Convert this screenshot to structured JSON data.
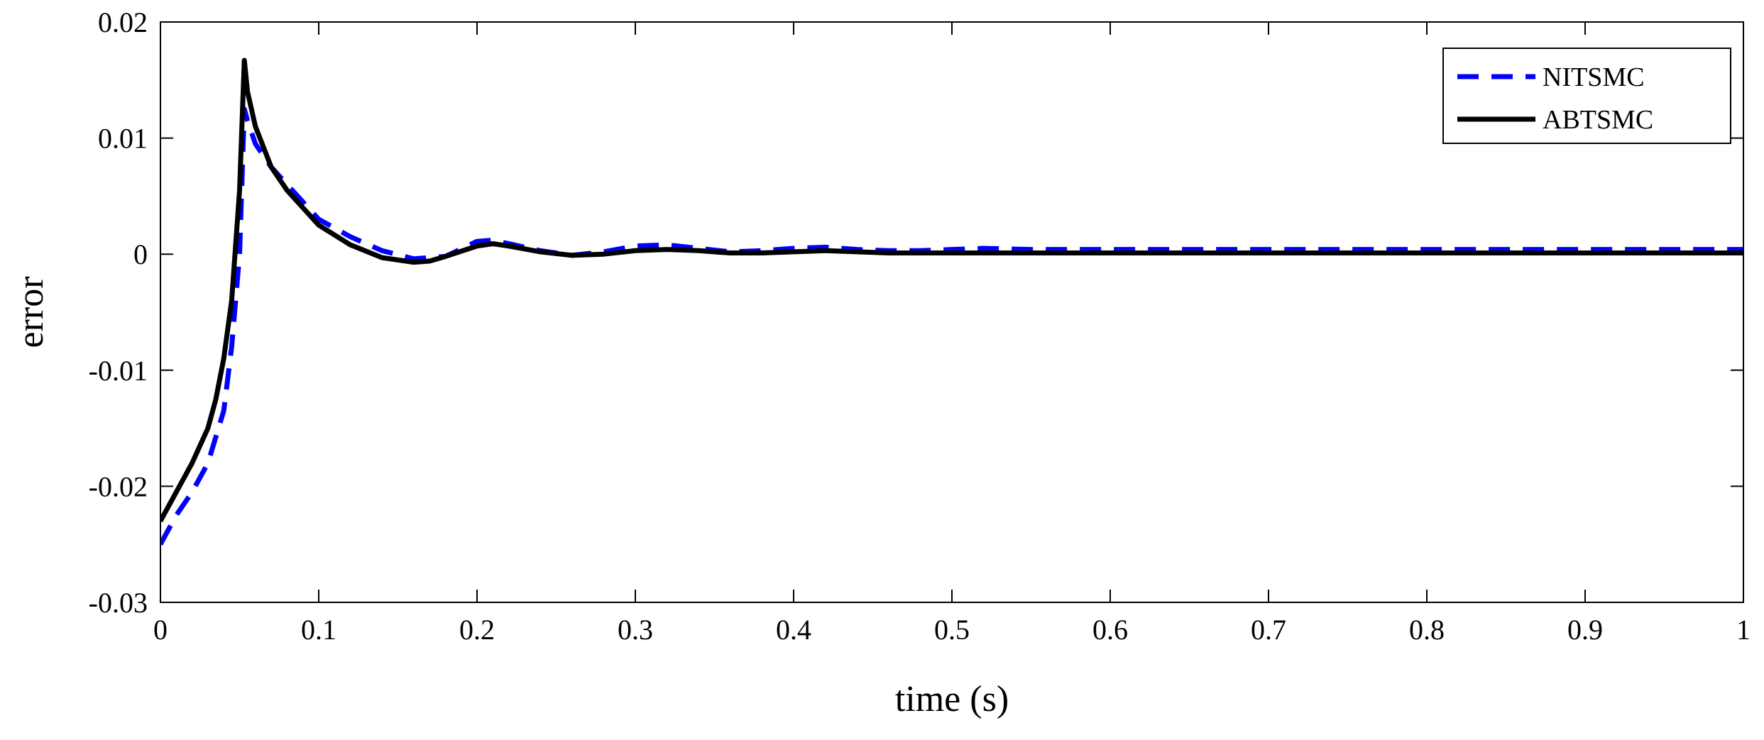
{
  "chart_data": {
    "type": "line",
    "title": "",
    "xlabel": "time (s)",
    "ylabel": "error",
    "xlim": [
      0,
      1
    ],
    "ylim": [
      -0.03,
      0.02
    ],
    "grid": false,
    "legend_position": "top-right",
    "x_ticks": [
      0,
      0.1,
      0.2,
      0.3,
      0.4,
      0.5,
      0.6,
      0.7,
      0.8,
      0.9,
      1
    ],
    "x_tick_labels": [
      "0",
      "0.1",
      "0.2",
      "0.3",
      "0.4",
      "0.5",
      "0.6",
      "0.7",
      "0.8",
      "0.9",
      "1"
    ],
    "y_ticks": [
      -0.03,
      -0.02,
      -0.01,
      0,
      0.01,
      0.02
    ],
    "y_tick_labels": [
      "-0.03",
      "-0.02",
      "-0.01",
      "0",
      "0.01",
      "0.02"
    ],
    "series": [
      {
        "name": "NITSMC",
        "color": "#0000ff",
        "style": "dashed",
        "x": [
          0,
          0.01,
          0.02,
          0.03,
          0.04,
          0.045,
          0.05,
          0.053,
          0.055,
          0.06,
          0.07,
          0.08,
          0.1,
          0.12,
          0.14,
          0.16,
          0.18,
          0.2,
          0.21,
          0.22,
          0.24,
          0.26,
          0.28,
          0.3,
          0.32,
          0.34,
          0.36,
          0.38,
          0.4,
          0.42,
          0.44,
          0.46,
          0.48,
          0.5,
          0.52,
          0.55,
          0.6,
          0.7,
          0.8,
          0.9,
          1.0
        ],
        "y": [
          -0.025,
          -0.0225,
          -0.0205,
          -0.018,
          -0.0135,
          -0.008,
          0.0,
          0.0125,
          0.0115,
          0.0095,
          0.0075,
          0.006,
          0.003,
          0.0015,
          0.0003,
          -0.0004,
          -0.0002,
          0.0011,
          0.0012,
          0.0009,
          0.0003,
          -0.0001,
          0.0002,
          0.0007,
          0.0008,
          0.0005,
          0.0002,
          0.0003,
          0.0005,
          0.0006,
          0.0004,
          0.0003,
          0.0003,
          0.0004,
          0.0005,
          0.0004,
          0.0004,
          0.0004,
          0.0004,
          0.0004,
          0.0004
        ]
      },
      {
        "name": "ABTSMC",
        "color": "#000000",
        "style": "solid",
        "x": [
          0,
          0.01,
          0.02,
          0.03,
          0.035,
          0.04,
          0.045,
          0.05,
          0.053,
          0.055,
          0.06,
          0.07,
          0.08,
          0.1,
          0.12,
          0.14,
          0.16,
          0.17,
          0.18,
          0.2,
          0.21,
          0.22,
          0.24,
          0.26,
          0.28,
          0.3,
          0.32,
          0.34,
          0.36,
          0.38,
          0.4,
          0.42,
          0.44,
          0.46,
          0.48,
          0.5,
          0.52,
          0.55,
          0.6,
          0.7,
          0.8,
          0.9,
          1.0
        ],
        "y": [
          -0.023,
          -0.0205,
          -0.018,
          -0.015,
          -0.0125,
          -0.009,
          -0.004,
          0.0055,
          0.0167,
          0.014,
          0.011,
          0.0075,
          0.0055,
          0.0025,
          0.0008,
          -0.0003,
          -0.0007,
          -0.0006,
          -0.0002,
          0.0007,
          0.0009,
          0.0007,
          0.0002,
          -0.0001,
          0.0,
          0.0003,
          0.0004,
          0.0003,
          0.0001,
          0.0001,
          0.0002,
          0.0003,
          0.0002,
          0.0001,
          0.0001,
          0.0001,
          0.0001,
          0.0001,
          0.0001,
          0.0001,
          0.0001,
          0.0001,
          0.0001
        ]
      }
    ]
  }
}
